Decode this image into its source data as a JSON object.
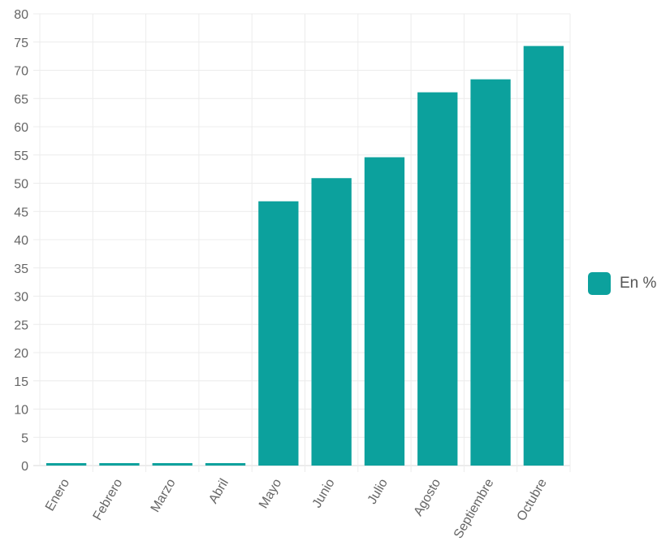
{
  "chart_data": {
    "type": "bar",
    "categories": [
      "Enero",
      "Febrero",
      "Marzo",
      "Abril",
      "Mayo",
      "Junio",
      "Julio",
      "Agosto",
      "Septiembre",
      "Octubre"
    ],
    "series": [
      {
        "name": "En %",
        "values": [
          0,
          0,
          0,
          0,
          46.8,
          50.9,
          54.6,
          66.1,
          68.4,
          74.3
        ],
        "color": "#0ca19d"
      }
    ],
    "ylim": [
      0,
      80
    ],
    "ytick_step": 5,
    "grid": true,
    "legend_position": "right"
  }
}
